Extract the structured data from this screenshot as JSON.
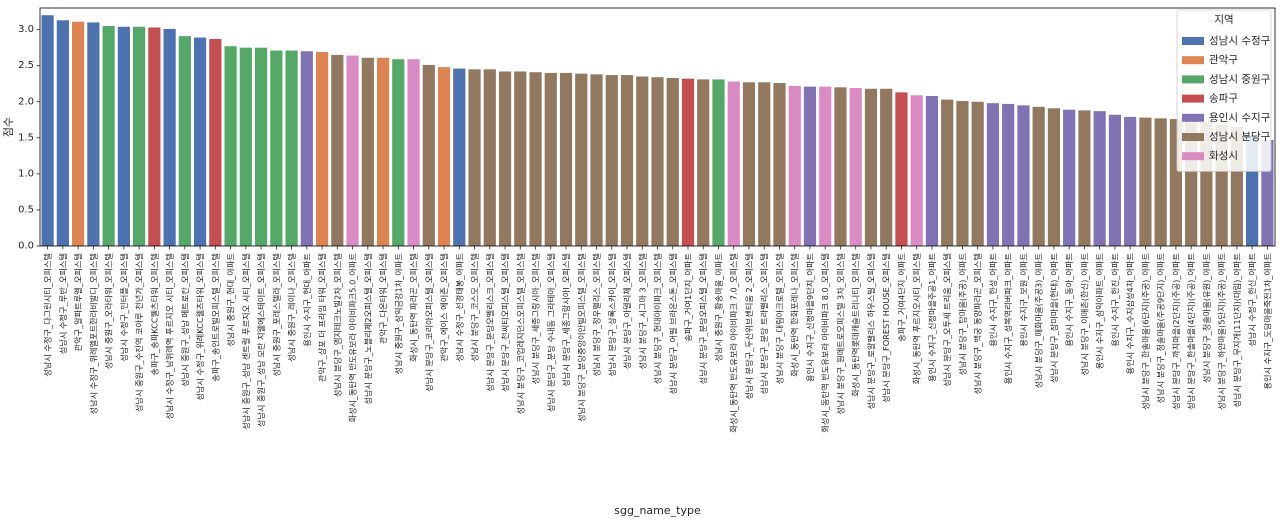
{
  "chart_data": {
    "type": "bar",
    "xlabel": "sgg_name_type",
    "ylabel": "점수",
    "ylim": [
      0,
      3.3
    ],
    "yticks": [
      "0.0",
      "0.5",
      "1.0",
      "1.5",
      "2.0",
      "2.5",
      "3.0"
    ],
    "grid": false,
    "legend": {
      "title": "지역",
      "placement": "top-right",
      "entries": [
        "성남시 수정구",
        "관악구",
        "성남시 중원구",
        "송파구",
        "용인시 수지구",
        "성남시 분당구",
        "화성시"
      ]
    },
    "colors": {
      "성남시 수정구": "#4c72b0",
      "관악구": "#dd8452",
      "성남시 중원구": "#55a868",
      "송파구": "#c44e52",
      "용인시 수지구": "#8172b3",
      "성남시 분당구": "#937860",
      "화성시": "#da8bc3"
    },
    "bars": [
      {
        "category": "성남시 수정구_다그린시티_오피스텔",
        "region": "성남시 수정구",
        "value": 3.2
      },
      {
        "category": "성남시 수정구_루반_오피스텔",
        "region": "성남시 수정구",
        "value": 3.13
      },
      {
        "category": "관악구_알파트루엘_오피스텔",
        "region": "관악구",
        "value": 3.11
      },
      {
        "category": "성남시 수정구_위례엘포트한라비발디_오피스텔",
        "region": "성남시 수정구",
        "value": 3.1
      },
      {
        "category": "성남시 중원구_오라타워_오피스텔",
        "region": "성남시 중원구",
        "value": 3.05
      },
      {
        "category": "성남시 수정구_인터플_오피스텔",
        "region": "성남시 수정구",
        "value": 3.04
      },
      {
        "category": "성남시 중원구_수진역 코아루 천년가_오피스텔",
        "region": "성남시 중원구",
        "value": 3.04
      },
      {
        "category": "송파구_송파KCC웰츠타워_오피스텔",
        "region": "송파구",
        "value": 3.03
      },
      {
        "category": "성남시 수정구_남위례역 푸르지오 시티_오피스텔",
        "region": "성남시 수정구",
        "value": 3.01
      },
      {
        "category": "성남시 중원구_성남 메트로칸_오피스텔",
        "region": "성남시 중원구",
        "value": 2.91
      },
      {
        "category": "성남시 수정구_위례KCC웰츠타워_오피스텔",
        "region": "성남시 수정구",
        "value": 2.89
      },
      {
        "category": "송파구_송인트로빌오피스텔_오피스텔",
        "region": "송파구",
        "value": 2.87
      },
      {
        "category": "성남시 중원구_현대_아파트",
        "region": "성남시 중원구",
        "value": 2.77
      },
      {
        "category": "성남시 중원구_성남 센트럴 푸르지오 시티_오피스텔",
        "region": "성남시 중원구",
        "value": 2.75
      },
      {
        "category": "성남시 중원구_성남 모란 지웰에스테이트_오피스텔",
        "region": "성남시 중원구",
        "value": 2.75
      },
      {
        "category": "성남시 중원구_포레스텔라_오피스텔",
        "region": "성남시 중원구",
        "value": 2.71
      },
      {
        "category": "성남시 중원구_레이나_오피스텔",
        "region": "성남시 중원구",
        "value": 2.71
      },
      {
        "category": "용인시 수지구_현대_아파트",
        "region": "용인시 수지구",
        "value": 2.7
      },
      {
        "category": "관악구_샹포 더 프라임 타워_오피스텔",
        "region": "관악구",
        "value": 2.69
      },
      {
        "category": "성남시 분당구_엠지테크노빌2차_오피스텔",
        "region": "성남시 분당구",
        "value": 2.65
      },
      {
        "category": "화성시_동탄역 반도유보라 아이비파크5.0_아파트",
        "region": "화성시",
        "value": 2.64
      },
      {
        "category": "성남시 분당구_노블리제2오피스텔_오피스텔",
        "region": "성남시 분당구",
        "value": 2.61
      },
      {
        "category": "관악구_다온타워_오피스텔",
        "region": "관악구",
        "value": 2.61
      },
      {
        "category": "성남시 중원구_삼익금강1차_아파트",
        "region": "성남시 중원구",
        "value": 2.59
      },
      {
        "category": "화성시_동탄역 파라곤_오피스텔",
        "region": "화성시",
        "value": 2.59
      },
      {
        "category": "성남시 분당구_코리아오피스텔_오피스텔",
        "region": "성남시 분당구",
        "value": 2.51
      },
      {
        "category": "관악구_에이스 에이존_오피스텔",
        "region": "관악구",
        "value": 2.48
      },
      {
        "category": "성남시 수정구_선경태봉_아파트",
        "region": "성남시 수정구",
        "value": 2.46
      },
      {
        "category": "성남시 분당구_코스모_오피스텔",
        "region": "성남시 분당구",
        "value": 2.45
      },
      {
        "category": "성남시 분당구_분당오벨리스크_오피스텔",
        "region": "성남시 분당구",
        "value": 2.45
      },
      {
        "category": "성남시 분당구_천씨티오피스텔_오피스텔",
        "region": "성남시 분당구",
        "value": 2.42
      },
      {
        "category": "성남시 분당구_코업레지던스오피스텔_오피스텔",
        "region": "성남시 분당구",
        "value": 2.42
      },
      {
        "category": "성남시 분당구_세종그랑시아_오피스텔",
        "region": "성남시 분당구",
        "value": 2.41
      },
      {
        "category": "성남시 분당구_분당 수내동 그라테아_오피스텔",
        "region": "성남시 분당구",
        "value": 2.4
      },
      {
        "category": "성남시 분당구_세종그랑시아Ⅰ_오피스텔",
        "region": "성남시 분당구",
        "value": 2.4
      },
      {
        "category": "성남시 분당구_분당중앙이안빌오피스텔_오피스텔",
        "region": "성남시 분당구",
        "value": 2.39
      },
      {
        "category": "성남시 분당구_정우팰리스_오피스텔",
        "region": "성남시 분당구",
        "value": 2.38
      },
      {
        "category": "성남시 분당구_상록스카이_오피스텔",
        "region": "성남시 분당구",
        "value": 2.37
      },
      {
        "category": "성남시 분당구_아델리체_오피스텔",
        "region": "성남시 분당구",
        "value": 2.37
      },
      {
        "category": "성남시 분당구_시그마 3_오피스텔",
        "region": "성남시 분당구",
        "value": 2.35
      },
      {
        "category": "성남시 분당구_현대아이파크_오피스텔",
        "region": "성남시 분당구",
        "value": 2.34
      },
      {
        "category": "성남시 분당구_어필 브라운스톤_오피스텔",
        "region": "성남시 분당구",
        "value": 2.33
      },
      {
        "category": "송파구_거여1단지_아파트",
        "region": "송파구",
        "value": 2.32
      },
      {
        "category": "성남시 분당구_분당오피스텔_오피스텔",
        "region": "성남시 분당구",
        "value": 2.31
      },
      {
        "category": "성남시 중원구_황송마을_아파트",
        "region": "성남시 중원구",
        "value": 2.31
      },
      {
        "category": "화성시_동탄역 반도유보라 아이비파크 7.0_오피스텔",
        "region": "화성시",
        "value": 2.28
      },
      {
        "category": "성남시 분당구_두산위브센티움 2_오피스텔",
        "region": "성남시 분당구",
        "value": 2.27
      },
      {
        "category": "성남시 분당구_분당 트라팰리스_오피스텔",
        "region": "성남시 분당구",
        "value": 2.27
      },
      {
        "category": "성남시 분당구_대림아크로텔_오피스텔",
        "region": "성남시 분당구",
        "value": 2.26
      },
      {
        "category": "화성시_동탄역 한화포레나_오피스텔",
        "region": "화성시",
        "value": 2.22
      },
      {
        "category": "용인시 수지구_신정마을9단지_아파트",
        "region": "용인시 수지구",
        "value": 2.21
      },
      {
        "category": "화성시_동탄역 반도유보라 아이비파크 8.0_오피스텔",
        "region": "화성시",
        "value": 2.21
      },
      {
        "category": "성남시 분당구_원메트로오피스텔 3차_오피스텔",
        "region": "성남시 분당구",
        "value": 2.2
      },
      {
        "category": "화성시_동탄역롯데캐슬트리니티_오피스텔",
        "region": "화성시",
        "value": 2.19
      },
      {
        "category": "성남시 분당구_로얄팰리스 하우스빌_오피스텔",
        "region": "성남시 분당구",
        "value": 2.18
      },
      {
        "category": "성남시 분당구_FOREST HOUSE_오피스텔",
        "region": "성남시 분당구",
        "value": 2.18
      },
      {
        "category": "송파구_거여4단지_아파트",
        "region": "송파구",
        "value": 2.13
      },
      {
        "category": "화성시_동탄역 푸르지오시티_오피스텔",
        "region": "화성시",
        "value": 2.09
      },
      {
        "category": "용인시 수지구_신정마을주공1_아파트",
        "region": "용인시 수지구",
        "value": 2.08
      },
      {
        "category": "성남시 분당구_오투세 트리움_오피스텔",
        "region": "성남시 분당구",
        "value": 2.03
      },
      {
        "category": "성남시 분당구_탑마을(주공)_아파트",
        "region": "성남시 분당구",
        "value": 2.01
      },
      {
        "category": "성남시 분당구_백궁 동양파라곤_오피스텔",
        "region": "성남시 분당구",
        "value": 2.0
      },
      {
        "category": "용인시 수지구_한성_아파트",
        "region": "용인시 수지구",
        "value": 1.98
      },
      {
        "category": "용인시 수지구_성복역리버파크_아파트",
        "region": "용인시 수지구",
        "value": 1.97
      },
      {
        "category": "용인시 수지구_보원_아파트",
        "region": "용인시 수지구",
        "value": 1.95
      },
      {
        "category": "성남시 분당구_매화마을(주공3)_아파트",
        "region": "성남시 분당구",
        "value": 1.93
      },
      {
        "category": "성남시 분당구_장미마을(현대)_아파트",
        "region": "성남시 분당구",
        "value": 1.91
      },
      {
        "category": "용인시 수지구_동아_아파트",
        "region": "용인시 수지구",
        "value": 1.89
      },
      {
        "category": "성남시 분당구_이매촌(한신)_아파트",
        "region": "성남시 분당구",
        "value": 1.88
      },
      {
        "category": "용인시 수지구_삼익아파트_아파트",
        "region": "용인시 수지구",
        "value": 1.87
      },
      {
        "category": "용인시 수지구_한진_아파트",
        "region": "용인시 수지구",
        "value": 1.82
      },
      {
        "category": "용인시 수지구_수지삼성4차_아파트",
        "region": "용인시 수지구",
        "value": 1.79
      },
      {
        "category": "성남시 분당구_한솔마을(6단지)(주공)_아파트",
        "region": "성남시 분당구",
        "value": 1.78
      },
      {
        "category": "성남시 분당구_청솔마을(주공9단지)_아파트",
        "region": "성남시 분당구",
        "value": 1.77
      },
      {
        "category": "성남시 분당구_까치마을(2단지)(주공)_아파트",
        "region": "성남시 분당구",
        "value": 1.76
      },
      {
        "category": "성남시 분당구_한솔마을(4단지)(주공)_아파트",
        "region": "성남시 분당구",
        "value": 1.74
      },
      {
        "category": "성남시 분당구_청솔마을(유원)_아파트",
        "region": "성남시 분당구",
        "value": 1.72
      },
      {
        "category": "성남시 분당구_하얀마을(5단지)(주공)_아파트",
        "region": "성남시 분당구",
        "value": 1.68
      },
      {
        "category": "성남시 분당구_무지개(11단지)(대림)_아파트",
        "region": "성남시 분당구",
        "value": 1.65
      },
      {
        "category": "성남시 수정구_한신_아파트",
        "region": "성남시 수정구",
        "value": 1.54
      },
      {
        "category": "용인시 수지구_도담마을죽전1차_아파트",
        "region": "용인시 수지구",
        "value": 1.47
      }
    ]
  }
}
